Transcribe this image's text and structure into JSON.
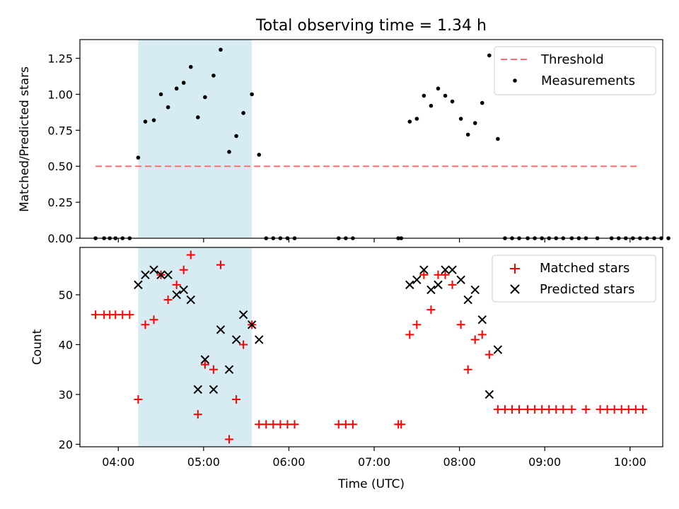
{
  "chart_data": {
    "type": "scatter",
    "title": "Total observing time = 1.34 h",
    "xlabel": "Time (UTC)",
    "x_ticks": [
      "04:00",
      "05:00",
      "06:00",
      "07:00",
      "08:00",
      "09:00",
      "10:00"
    ],
    "xlim": [
      "03:33",
      "10:23"
    ],
    "highlight_span": [
      "04:14",
      "05:34"
    ],
    "colors": {
      "highlight": "#add8e6",
      "threshold": "#ff6e6e",
      "measurements": "#000000",
      "matched": "#ff0000",
      "predicted": "#000000"
    },
    "panels": [
      {
        "ylabel": "Matched/Predicted stars",
        "ylim": [
          0,
          1.38
        ],
        "y_ticks": [
          "0.00",
          "0.25",
          "0.50",
          "0.75",
          "1.00",
          "1.25"
        ],
        "legend": {
          "placement": "upper right",
          "entries": [
            "Threshold",
            "Measurements"
          ]
        },
        "threshold": {
          "name": "Threshold",
          "value": 0.5,
          "x": [
            "03:44",
            "10:05"
          ]
        },
        "measurements": {
          "name": "Measurements",
          "points": [
            [
              "03:44",
              0
            ],
            [
              "03:50",
              0
            ],
            [
              "03:54",
              0
            ],
            [
              "03:58",
              0
            ],
            [
              "04:03",
              0
            ],
            [
              "04:08",
              0
            ],
            [
              "04:14",
              0.56
            ],
            [
              "04:19",
              0.81
            ],
            [
              "04:25",
              0.82
            ],
            [
              "04:30",
              1.0
            ],
            [
              "04:35",
              0.91
            ],
            [
              "04:41",
              1.04
            ],
            [
              "04:46",
              1.08
            ],
            [
              "04:51",
              1.19
            ],
            [
              "04:56",
              0.84
            ],
            [
              "05:01",
              0.98
            ],
            [
              "05:07",
              1.13
            ],
            [
              "05:12",
              1.31
            ],
            [
              "05:18",
              0.6
            ],
            [
              "05:23",
              0.71
            ],
            [
              "05:28",
              0.87
            ],
            [
              "05:34",
              1.0
            ],
            [
              "05:39",
              0.58
            ],
            [
              "05:44",
              0
            ],
            [
              "05:49",
              0
            ],
            [
              "05:54",
              0
            ],
            [
              "05:59",
              0
            ],
            [
              "06:04",
              0
            ],
            [
              "06:35",
              0
            ],
            [
              "06:40",
              0
            ],
            [
              "06:45",
              0
            ],
            [
              "07:17",
              0
            ],
            [
              "07:19",
              0
            ],
            [
              "07:25",
              0.81
            ],
            [
              "07:30",
              0.83
            ],
            [
              "07:35",
              0.99
            ],
            [
              "07:40",
              0.92
            ],
            [
              "07:45",
              1.04
            ],
            [
              "07:50",
              0.99
            ],
            [
              "07:55",
              0.95
            ],
            [
              "08:01",
              0.83
            ],
            [
              "08:06",
              0.72
            ],
            [
              "08:11",
              0.8
            ],
            [
              "08:16",
              0.94
            ],
            [
              "08:21",
              1.27
            ],
            [
              "08:27",
              0.69
            ],
            [
              "08:32",
              0
            ],
            [
              "08:37",
              0
            ],
            [
              "08:42",
              0
            ],
            [
              "08:48",
              0
            ],
            [
              "08:53",
              0
            ],
            [
              "08:58",
              0
            ],
            [
              "09:03",
              0
            ],
            [
              "09:08",
              0
            ],
            [
              "09:13",
              0
            ],
            [
              "09:19",
              0
            ],
            [
              "09:24",
              0
            ],
            [
              "09:29",
              0
            ],
            [
              "09:37",
              0
            ],
            [
              "09:47",
              0
            ],
            [
              "09:52",
              0
            ],
            [
              "09:57",
              0
            ],
            [
              "10:02",
              0
            ],
            [
              "10:07",
              0
            ],
            [
              "10:12",
              0
            ],
            [
              "10:17",
              0
            ],
            [
              "10:22",
              0
            ],
            [
              "10:27",
              0
            ]
          ]
        }
      },
      {
        "ylabel": "Count",
        "ylim": [
          19.5,
          59.5
        ],
        "y_ticks": [
          "20",
          "30",
          "40",
          "50"
        ],
        "legend": {
          "placement": "upper right",
          "entries": [
            "Matched stars",
            "Predicted stars"
          ]
        },
        "matched": {
          "name": "Matched stars",
          "points": [
            [
              "03:44",
              46
            ],
            [
              "03:50",
              46
            ],
            [
              "03:54",
              46
            ],
            [
              "03:58",
              46
            ],
            [
              "04:03",
              46
            ],
            [
              "04:08",
              46
            ],
            [
              "04:14",
              29
            ],
            [
              "04:19",
              44
            ],
            [
              "04:25",
              45
            ],
            [
              "04:30",
              54
            ],
            [
              "04:35",
              49
            ],
            [
              "04:41",
              52
            ],
            [
              "04:46",
              55
            ],
            [
              "04:51",
              58
            ],
            [
              "04:56",
              26
            ],
            [
              "05:01",
              36
            ],
            [
              "05:07",
              35
            ],
            [
              "05:12",
              56
            ],
            [
              "05:18",
              21
            ],
            [
              "05:23",
              29
            ],
            [
              "05:28",
              40
            ],
            [
              "05:34",
              44
            ],
            [
              "05:39",
              24
            ],
            [
              "05:44",
              24
            ],
            [
              "05:49",
              24
            ],
            [
              "05:54",
              24
            ],
            [
              "05:59",
              24
            ],
            [
              "06:04",
              24
            ],
            [
              "06:35",
              24
            ],
            [
              "06:40",
              24
            ],
            [
              "06:45",
              24
            ],
            [
              "07:17",
              24
            ],
            [
              "07:19",
              24
            ],
            [
              "07:25",
              42
            ],
            [
              "07:30",
              44
            ],
            [
              "07:35",
              54
            ],
            [
              "07:40",
              47
            ],
            [
              "07:45",
              54
            ],
            [
              "07:50",
              54
            ],
            [
              "07:55",
              52
            ],
            [
              "08:01",
              44
            ],
            [
              "08:06",
              35
            ],
            [
              "08:11",
              41
            ],
            [
              "08:16",
              42
            ],
            [
              "08:21",
              38
            ],
            [
              "08:27",
              27
            ],
            [
              "08:32",
              27
            ],
            [
              "08:37",
              27
            ],
            [
              "08:42",
              27
            ],
            [
              "08:48",
              27
            ],
            [
              "08:53",
              27
            ],
            [
              "08:58",
              27
            ],
            [
              "09:03",
              27
            ],
            [
              "09:08",
              27
            ],
            [
              "09:13",
              27
            ],
            [
              "09:19",
              27
            ],
            [
              "09:29",
              27
            ],
            [
              "09:39",
              27
            ],
            [
              "09:44",
              27
            ],
            [
              "09:49",
              27
            ],
            [
              "09:54",
              27
            ],
            [
              "09:59",
              27
            ],
            [
              "10:04",
              27
            ],
            [
              "10:09",
              27
            ]
          ]
        },
        "predicted": {
          "name": "Predicted stars",
          "points": [
            [
              "04:14",
              52
            ],
            [
              "04:19",
              54
            ],
            [
              "04:25",
              55
            ],
            [
              "04:30",
              54
            ],
            [
              "04:35",
              54
            ],
            [
              "04:41",
              50
            ],
            [
              "04:46",
              51
            ],
            [
              "04:51",
              49
            ],
            [
              "04:56",
              31
            ],
            [
              "05:01",
              37
            ],
            [
              "05:07",
              31
            ],
            [
              "05:12",
              43
            ],
            [
              "05:18",
              35
            ],
            [
              "05:23",
              41
            ],
            [
              "05:28",
              46
            ],
            [
              "05:34",
              44
            ],
            [
              "05:39",
              41
            ],
            [
              "07:25",
              52
            ],
            [
              "07:30",
              53
            ],
            [
              "07:35",
              55
            ],
            [
              "07:40",
              51
            ],
            [
              "07:45",
              52
            ],
            [
              "07:50",
              55
            ],
            [
              "07:55",
              55
            ],
            [
              "08:01",
              53
            ],
            [
              "08:06",
              49
            ],
            [
              "08:11",
              51
            ],
            [
              "08:16",
              45
            ],
            [
              "08:21",
              30
            ],
            [
              "08:27",
              39
            ]
          ]
        }
      }
    ]
  }
}
